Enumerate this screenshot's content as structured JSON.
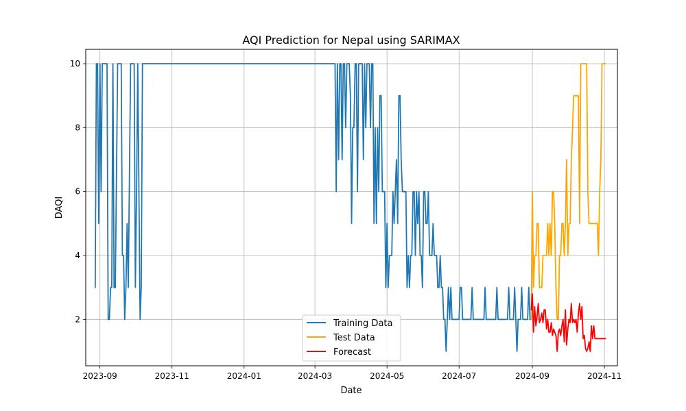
{
  "chart_data": {
    "type": "line",
    "title": "AQI Prediction for Nepal using SARIMAX",
    "xlabel": "Date",
    "ylabel": "DAQI",
    "grid": true,
    "legend_position": "bottom-center",
    "xlim": [
      "2023-08-20",
      "2024-11-12"
    ],
    "ylim": [
      0.55,
      10.45
    ],
    "x_ticks": [
      "2023-09",
      "2023-11",
      "2024-01",
      "2024-03",
      "2024-05",
      "2024-07",
      "2024-09",
      "2024-11"
    ],
    "y_ticks": [
      "2",
      "4",
      "6",
      "8",
      "10"
    ],
    "colors": {
      "training": "#1f77b4",
      "test": "#ffa500",
      "forecast": "#ff0000",
      "grid": "#b0b0b0"
    },
    "series": [
      {
        "name": "Training Data",
        "key": "training",
        "x": [
          "2023-08-28",
          "2023-08-29",
          "2023-08-30",
          "2023-08-31",
          "2023-09-01",
          "2023-09-02",
          "2023-09-03",
          "2023-09-05",
          "2023-09-07",
          "2023-09-08",
          "2023-09-09",
          "2023-09-10",
          "2023-09-11",
          "2023-09-12",
          "2023-09-13",
          "2023-09-14",
          "2023-09-16",
          "2023-09-19",
          "2023-09-20",
          "2023-09-21",
          "2023-09-22",
          "2023-09-23",
          "2023-09-24",
          "2023-09-25",
          "2023-09-27",
          "2023-09-30",
          "2023-10-01",
          "2023-10-02",
          "2023-10-03",
          "2023-10-04",
          "2023-10-05",
          "2023-10-06",
          "2023-10-07",
          "2024-03-18",
          "2024-03-19",
          "2024-03-20",
          "2024-03-21",
          "2024-03-22",
          "2024-03-23",
          "2024-03-24",
          "2024-03-25",
          "2024-03-26",
          "2024-03-27",
          "2024-03-28",
          "2024-03-29",
          "2024-03-30",
          "2024-03-31",
          "2024-04-01",
          "2024-04-02",
          "2024-04-03",
          "2024-04-04",
          "2024-04-05",
          "2024-04-06",
          "2024-04-07",
          "2024-04-08",
          "2024-04-09",
          "2024-04-10",
          "2024-04-11",
          "2024-04-12",
          "2024-04-13",
          "2024-04-14",
          "2024-04-15",
          "2024-04-16",
          "2024-04-17",
          "2024-04-18",
          "2024-04-19",
          "2024-04-20",
          "2024-04-21",
          "2024-04-22",
          "2024-04-23",
          "2024-04-24",
          "2024-04-25",
          "2024-04-26",
          "2024-04-27",
          "2024-04-28",
          "2024-04-29",
          "2024-04-30",
          "2024-05-01",
          "2024-05-02",
          "2024-05-03",
          "2024-05-04",
          "2024-05-05",
          "2024-05-06",
          "2024-05-07",
          "2024-05-08",
          "2024-05-09",
          "2024-05-10",
          "2024-05-11",
          "2024-05-12",
          "2024-05-13",
          "2024-05-14",
          "2024-05-15",
          "2024-05-16",
          "2024-05-17",
          "2024-05-18",
          "2024-05-19",
          "2024-05-20",
          "2024-05-21",
          "2024-05-22",
          "2024-05-23",
          "2024-05-24",
          "2024-05-25",
          "2024-05-26",
          "2024-05-27",
          "2024-05-28",
          "2024-05-29",
          "2024-05-30",
          "2024-05-31",
          "2024-06-01",
          "2024-06-02",
          "2024-06-03",
          "2024-06-04",
          "2024-06-05",
          "2024-06-06",
          "2024-06-07",
          "2024-06-08",
          "2024-06-09",
          "2024-06-10",
          "2024-06-11",
          "2024-06-12",
          "2024-06-13",
          "2024-06-14",
          "2024-06-15",
          "2024-06-16",
          "2024-06-17",
          "2024-06-18",
          "2024-06-19",
          "2024-06-20",
          "2024-06-21",
          "2024-06-22",
          "2024-06-23",
          "2024-06-24",
          "2024-06-25",
          "2024-06-26",
          "2024-06-27",
          "2024-06-28",
          "2024-06-29",
          "2024-06-30",
          "2024-07-01",
          "2024-07-02",
          "2024-07-03",
          "2024-07-04",
          "2024-07-05",
          "2024-07-06",
          "2024-07-07",
          "2024-07-08",
          "2024-07-09",
          "2024-07-10",
          "2024-07-11",
          "2024-07-12",
          "2024-07-13",
          "2024-07-14",
          "2024-07-15",
          "2024-07-16",
          "2024-07-17",
          "2024-07-18",
          "2024-07-19",
          "2024-07-20",
          "2024-07-21",
          "2024-07-22",
          "2024-07-23",
          "2024-07-24",
          "2024-07-25",
          "2024-07-26",
          "2024-07-27",
          "2024-07-28",
          "2024-07-29",
          "2024-07-30",
          "2024-07-31",
          "2024-08-01",
          "2024-08-02",
          "2024-08-03",
          "2024-08-04",
          "2024-08-05",
          "2024-08-06",
          "2024-08-07",
          "2024-08-08",
          "2024-08-09",
          "2024-08-10",
          "2024-08-11",
          "2024-08-12",
          "2024-08-13",
          "2024-08-14",
          "2024-08-15",
          "2024-08-16",
          "2024-08-17",
          "2024-08-18",
          "2024-08-19",
          "2024-08-20",
          "2024-08-21",
          "2024-08-22",
          "2024-08-23",
          "2024-08-24",
          "2024-08-25",
          "2024-08-26",
          "2024-08-27",
          "2024-08-28",
          "2024-08-29",
          "2024-08-30",
          "2024-08-31"
        ],
        "values": [
          3,
          10,
          10,
          5,
          10,
          6,
          10,
          10,
          10,
          2,
          2,
          3,
          3,
          10,
          3,
          3,
          10,
          10,
          4,
          4,
          2,
          3,
          5,
          3,
          10,
          10,
          3,
          6,
          10,
          6,
          2,
          3,
          10,
          10,
          6,
          10,
          7,
          10,
          10,
          7,
          10,
          10,
          8,
          10,
          10,
          10,
          9,
          5,
          8,
          8,
          10,
          10,
          6,
          10,
          10,
          10,
          10,
          7,
          10,
          8,
          10,
          10,
          10,
          8,
          10,
          10,
          5,
          8,
          5,
          8,
          6,
          9,
          9,
          6,
          6,
          6,
          3,
          5,
          3,
          4,
          4,
          4,
          6,
          5,
          6,
          7,
          5,
          9,
          9,
          7,
          6,
          6,
          6,
          6,
          3,
          4,
          3,
          4,
          4,
          6,
          6,
          4,
          6,
          5,
          6,
          4,
          4,
          3,
          6,
          6,
          5,
          5,
          6,
          4,
          4,
          4,
          5,
          4,
          4,
          4,
          3,
          3,
          4,
          3,
          3,
          2,
          2,
          1,
          2,
          3,
          2,
          3,
          2,
          2,
          2,
          2,
          2,
          2,
          2,
          3,
          3,
          2,
          2,
          2,
          2,
          2,
          2,
          2,
          2,
          3,
          2,
          2,
          2,
          2,
          2,
          2,
          2,
          2,
          2,
          2,
          3,
          2,
          2,
          2,
          2,
          2,
          2,
          2,
          2,
          2,
          3,
          2,
          2,
          2,
          2,
          2,
          2,
          2,
          2,
          2,
          3,
          2,
          2,
          2,
          2,
          3,
          2,
          1,
          2,
          2,
          2,
          3,
          2,
          2,
          2,
          2,
          2,
          3,
          2,
          2
        ]
      },
      {
        "name": "Test Data",
        "key": "test",
        "x": [
          "2024-08-31",
          "2024-09-01",
          "2024-09-02",
          "2024-09-03",
          "2024-09-04",
          "2024-09-05",
          "2024-09-06",
          "2024-09-07",
          "2024-09-08",
          "2024-09-09",
          "2024-09-10",
          "2024-09-11",
          "2024-09-12",
          "2024-09-13",
          "2024-09-14",
          "2024-09-15",
          "2024-09-16",
          "2024-09-17",
          "2024-09-18",
          "2024-09-19",
          "2024-09-20",
          "2024-09-21",
          "2024-09-22",
          "2024-09-23",
          "2024-09-24",
          "2024-09-25",
          "2024-09-26",
          "2024-09-27",
          "2024-09-28",
          "2024-09-29",
          "2024-09-30",
          "2024-10-01",
          "2024-10-02",
          "2024-10-03",
          "2024-10-04",
          "2024-10-05",
          "2024-10-06",
          "2024-10-07",
          "2024-10-08",
          "2024-10-09",
          "2024-10-10",
          "2024-10-11",
          "2024-10-12",
          "2024-10-13",
          "2024-10-14",
          "2024-10-15",
          "2024-10-16",
          "2024-10-17",
          "2024-10-18",
          "2024-10-19",
          "2024-10-20",
          "2024-10-21",
          "2024-10-22",
          "2024-10-23",
          "2024-10-24",
          "2024-10-25",
          "2024-10-26",
          "2024-10-27",
          "2024-10-28",
          "2024-10-29",
          "2024-10-30",
          "2024-10-31",
          "2024-11-01",
          "2024-11-02"
        ],
        "values": [
          2,
          6,
          3,
          4,
          4,
          5,
          5,
          3,
          3,
          3,
          4,
          4,
          4,
          4,
          5,
          4,
          5,
          4,
          6,
          6,
          5,
          3,
          2,
          2,
          4,
          4,
          5,
          5,
          4,
          5,
          7,
          4,
          5,
          5,
          7,
          8,
          9,
          9,
          9,
          9,
          9,
          5,
          10,
          10,
          10,
          10,
          10,
          10,
          6,
          5,
          5,
          5,
          5,
          5,
          5,
          5,
          5,
          4,
          6,
          7,
          10,
          10,
          10,
          10
        ]
      },
      {
        "name": "Forecast",
        "key": "forecast",
        "x": [
          "2024-08-31",
          "2024-09-01",
          "2024-09-02",
          "2024-09-03",
          "2024-09-04",
          "2024-09-05",
          "2024-09-06",
          "2024-09-07",
          "2024-09-08",
          "2024-09-09",
          "2024-09-10",
          "2024-09-11",
          "2024-09-12",
          "2024-09-13",
          "2024-09-14",
          "2024-09-15",
          "2024-09-16",
          "2024-09-17",
          "2024-09-18",
          "2024-09-19",
          "2024-09-20",
          "2024-09-21",
          "2024-09-22",
          "2024-09-23",
          "2024-09-24",
          "2024-09-25",
          "2024-09-26",
          "2024-09-27",
          "2024-09-28",
          "2024-09-29",
          "2024-09-30",
          "2024-10-01",
          "2024-10-02",
          "2024-10-03",
          "2024-10-04",
          "2024-10-05",
          "2024-10-06",
          "2024-10-07",
          "2024-10-08",
          "2024-10-09",
          "2024-10-10",
          "2024-10-11",
          "2024-10-12",
          "2024-10-13",
          "2024-10-14",
          "2024-10-15",
          "2024-10-16",
          "2024-10-17",
          "2024-10-18",
          "2024-10-19",
          "2024-10-20",
          "2024-10-21",
          "2024-10-22",
          "2024-10-23",
          "2024-10-24",
          "2024-10-25",
          "2024-10-26",
          "2024-10-27",
          "2024-10-28",
          "2024-10-29",
          "2024-10-30",
          "2024-10-31",
          "2024-11-01",
          "2024-11-02"
        ],
        "values": [
          2.3,
          2.8,
          1.6,
          2.4,
          1.8,
          2.1,
          2.5,
          1.9,
          2.0,
          2.2,
          1.9,
          2.3,
          2.3,
          1.7,
          2.0,
          1.6,
          1.6,
          1.9,
          1.5,
          1.7,
          1.6,
          1.5,
          1.0,
          1.6,
          1.7,
          1.5,
          1.8,
          2.0,
          1.3,
          2.3,
          1.2,
          1.7,
          2.0,
          1.9,
          2.5,
          1.9,
          2.0,
          1.9,
          2.0,
          1.6,
          2.2,
          2.5,
          2.0,
          2.4,
          1.4,
          1.5,
          1.1,
          1.0,
          1.1,
          1.3,
          1.0,
          1.8,
          1.4,
          1.8,
          1.4,
          1.4,
          1.4,
          1.4,
          1.4,
          1.4,
          1.4,
          1.4,
          1.4,
          1.4
        ]
      }
    ]
  }
}
